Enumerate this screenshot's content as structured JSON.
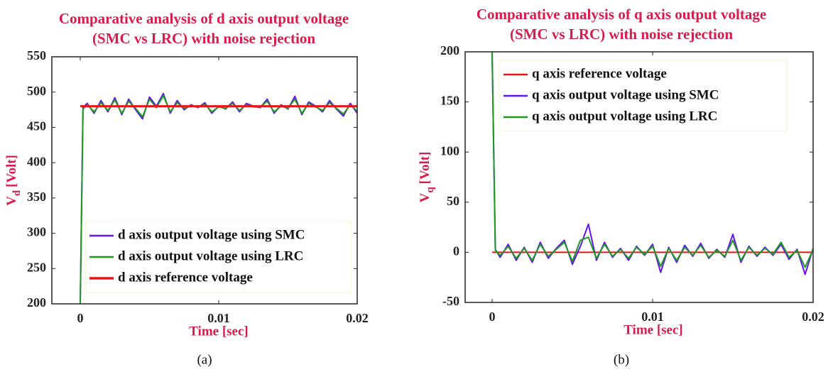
{
  "chart_data": [
    {
      "type": "line",
      "title": [
        "Comparative analysis of d axis output voltage",
        "(SMC vs LRC) with noise rejection"
      ],
      "xlabel": "Time [sec]",
      "ylabel": [
        "V",
        "d",
        "[Volt]"
      ],
      "panel_label": "(a)",
      "xlim": [
        -0.00205,
        0.02
      ],
      "ylim": [
        200,
        550
      ],
      "xticks": [
        0,
        0.01,
        0.02
      ],
      "yticks": [
        200,
        250,
        300,
        350,
        400,
        450,
        500,
        550
      ],
      "legend_loc": "lower right",
      "x": [
        0,
        0.0002,
        0.0005,
        0.001,
        0.0015,
        0.002,
        0.0025,
        0.003,
        0.0035,
        0.004,
        0.0045,
        0.005,
        0.0055,
        0.006,
        0.0065,
        0.007,
        0.0075,
        0.008,
        0.0085,
        0.009,
        0.0095,
        0.01,
        0.0105,
        0.011,
        0.0115,
        0.012,
        0.0125,
        0.013,
        0.0135,
        0.014,
        0.0145,
        0.015,
        0.0155,
        0.016,
        0.0165,
        0.017,
        0.0175,
        0.018,
        0.0185,
        0.019,
        0.0195,
        0.02
      ],
      "series": [
        {
          "name": "d axis output voltage using SMC",
          "color": "#6314f5",
          "width": 2,
          "values": [
            200,
            478,
            484,
            470,
            488,
            472,
            492,
            468,
            490,
            475,
            462,
            493,
            480,
            498,
            470,
            488,
            475,
            482,
            478,
            485,
            470,
            480,
            476,
            486,
            472,
            484,
            480,
            478,
            490,
            470,
            482,
            476,
            494,
            468,
            486,
            480,
            472,
            488,
            476,
            466,
            484,
            470
          ]
        },
        {
          "name": "d axis output voltage using LRC",
          "color": "#1d9a1d",
          "width": 2,
          "values": [
            200,
            476,
            482,
            472,
            485,
            474,
            489,
            470,
            487,
            477,
            465,
            490,
            478,
            495,
            472,
            485,
            477,
            480,
            479,
            483,
            472,
            479,
            477,
            484,
            474,
            482,
            479,
            479,
            487,
            472,
            480,
            477,
            490,
            470,
            484,
            479,
            474,
            485,
            477,
            469,
            482,
            473
          ]
        },
        {
          "name": "d axis reference voltage",
          "color": "#e8141a",
          "width": 3,
          "values": [
            480,
            480,
            480,
            480,
            480,
            480,
            480,
            480,
            480,
            480,
            480,
            480,
            480,
            480,
            480,
            480,
            480,
            480,
            480,
            480,
            480,
            480,
            480,
            480,
            480,
            480,
            480,
            480,
            480,
            480,
            480,
            480,
            480,
            480,
            480,
            480,
            480,
            480,
            480,
            480,
            480,
            480
          ]
        }
      ]
    },
    {
      "type": "line",
      "title": [
        "Comparative analysis of q axis output voltage",
        "(SMC vs LRC) with noise rejection"
      ],
      "xlabel": "Time [sec]",
      "ylabel": [
        "V",
        "q",
        "[Volt]"
      ],
      "panel_label": "(b)",
      "xlim": [
        -0.00168,
        0.02
      ],
      "ylim": [
        -50,
        200
      ],
      "xticks": [
        0,
        0.01,
        0.02
      ],
      "yticks": [
        -50,
        0,
        50,
        100,
        150,
        200
      ],
      "legend_loc": "upper left",
      "x": [
        0,
        0.0002,
        0.0005,
        0.001,
        0.0015,
        0.002,
        0.0025,
        0.003,
        0.0035,
        0.004,
        0.0045,
        0.005,
        0.0055,
        0.006,
        0.0065,
        0.007,
        0.0075,
        0.008,
        0.0085,
        0.009,
        0.0095,
        0.01,
        0.0105,
        0.011,
        0.0115,
        0.012,
        0.0125,
        0.013,
        0.0135,
        0.014,
        0.0145,
        0.015,
        0.0155,
        0.016,
        0.0165,
        0.017,
        0.0175,
        0.018,
        0.0185,
        0.019,
        0.0195,
        0.02
      ],
      "series": [
        {
          "name": "q axis reference voltage",
          "color": "#e8141a",
          "width": 2,
          "values": [
            0,
            0,
            0,
            0,
            0,
            0,
            0,
            0,
            0,
            0,
            0,
            0,
            0,
            0,
            0,
            0,
            0,
            0,
            0,
            0,
            0,
            0,
            0,
            0,
            0,
            0,
            0,
            0,
            0,
            0,
            0,
            0,
            0,
            0,
            0,
            0,
            0,
            0,
            0,
            0,
            0,
            0
          ]
        },
        {
          "name": "q axis output voltage using SMC",
          "color": "#6314f5",
          "width": 2,
          "values": [
            200,
            3,
            -5,
            8,
            -8,
            5,
            -10,
            10,
            -6,
            4,
            12,
            -12,
            6,
            28,
            -8,
            10,
            -5,
            4,
            -8,
            6,
            -3,
            8,
            -20,
            5,
            -10,
            7,
            -4,
            9,
            -6,
            3,
            -5,
            18,
            -10,
            6,
            -4,
            5,
            -3,
            8,
            -7,
            3,
            -22,
            4
          ]
        },
        {
          "name": "q axis output voltage using LRC",
          "color": "#1d9a1d",
          "width": 2,
          "values": [
            200,
            2,
            -3,
            6,
            -6,
            4,
            -8,
            8,
            -4,
            3,
            10,
            -9,
            12,
            15,
            -6,
            8,
            -4,
            3,
            -6,
            5,
            -2,
            6,
            -14,
            4,
            -8,
            5,
            -3,
            7,
            -5,
            2,
            -4,
            12,
            -8,
            5,
            -3,
            4,
            -2,
            10,
            -5,
            2,
            -15,
            3
          ]
        }
      ]
    }
  ]
}
